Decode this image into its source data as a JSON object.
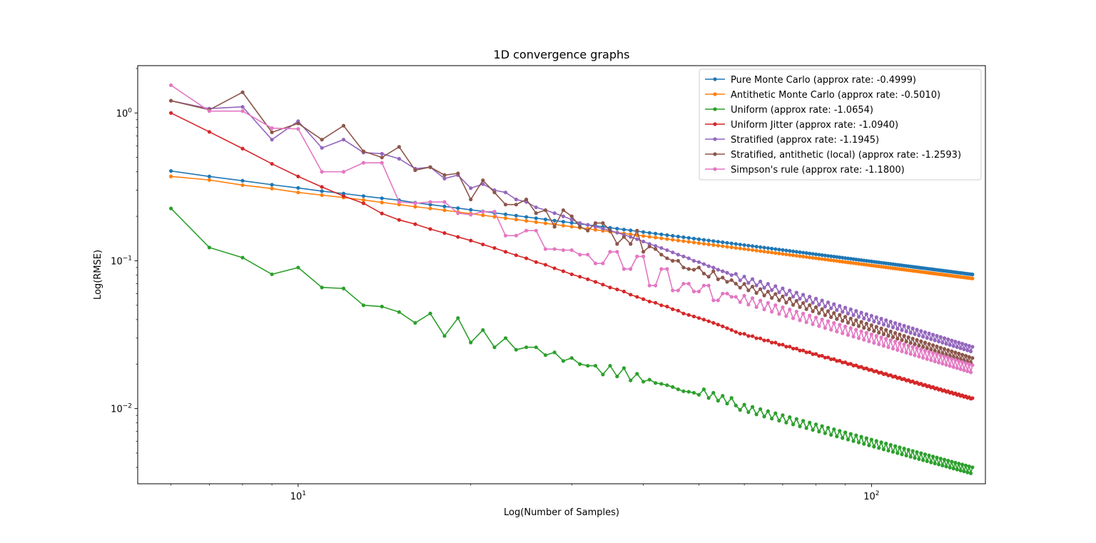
{
  "chart_data": {
    "type": "line",
    "title": "1D convergence graphs",
    "xlabel": "Log(Number of Samples)",
    "ylabel": "Log(RMSE)",
    "xscale": "log",
    "yscale": "log",
    "xlim": [
      5.25,
      158
    ],
    "ylim": [
      0.0031,
      2.09
    ],
    "x_range": [
      6,
      150
    ],
    "grid": false,
    "legend_position": "upper-right",
    "x_ticks": [
      {
        "value": 10,
        "base": "10",
        "exp": "1"
      },
      {
        "value": 100,
        "base": "10",
        "exp": "2"
      }
    ],
    "y_ticks": [
      {
        "value": 1,
        "base": "10",
        "exp": "0"
      },
      {
        "value": 0.1,
        "base": "10",
        "exp": "−1"
      },
      {
        "value": 0.01,
        "base": "10",
        "exp": "−2"
      }
    ],
    "series": [
      {
        "name": "Pure Monte Carlo (approx rate: -0.4999)",
        "color": "#1f77b4",
        "rate": -0.4999,
        "anchor": 0.405,
        "y": [
          0.405,
          0.372,
          0.348,
          0.327,
          0.311,
          0.296,
          0.285,
          0.274,
          0.265,
          0.257,
          0.247,
          0.24
        ]
      },
      {
        "name": "Antithetic Monte Carlo (approx rate: -0.5010)",
        "color": "#ff7f0e",
        "rate": -0.501,
        "anchor": 0.372,
        "y": [
          0.372,
          0.352,
          0.325,
          0.308,
          0.29,
          0.278,
          0.268,
          0.258,
          0.248,
          0.24,
          0.232,
          0.226
        ]
      },
      {
        "name": "Uniform (approx rate: -1.0654)",
        "color": "#2ca02c",
        "rate": -1.0654,
        "anchor": 0.226,
        "y": [
          0.226,
          0.123,
          0.105,
          0.081,
          0.09,
          0.066,
          0.065,
          0.05,
          0.049,
          0.045,
          0.038,
          0.044,
          0.031,
          0.041,
          0.028,
          0.034,
          0.026,
          0.03,
          0.025,
          0.026,
          0.026,
          0.023,
          0.024,
          0.021,
          0.022,
          0.02,
          0.0195,
          0.0195,
          0.017,
          0.0195,
          0.0165,
          0.0188,
          0.0155,
          0.0172,
          0.0152,
          0.0157,
          0.0149,
          0.0147,
          0.0144,
          0.014,
          0.0135,
          0.0131,
          0.013,
          0.0128,
          0.0124,
          0.0135,
          0.0118,
          0.0128,
          0.0113,
          0.0122,
          0.0108,
          0.0118,
          0.0105
        ]
      },
      {
        "name": "Uniform Jitter (approx rate: -1.0940)",
        "color": "#d62728",
        "rate": -1.094,
        "anchor": 1.0,
        "y": [
          1.0,
          0.745,
          0.574,
          0.453,
          0.372,
          0.316,
          0.274,
          0.245,
          0.209,
          0.189,
          0.177,
          0.164,
          0.154,
          0.145,
          0.137,
          0.129,
          0.122,
          0.115,
          0.109,
          0.104,
          0.098,
          0.094,
          0.089,
          0.085,
          0.081,
          0.078,
          0.075,
          0.072,
          0.069,
          0.066,
          0.064,
          0.062,
          0.059,
          0.057,
          0.055,
          0.053,
          0.052,
          0.05,
          0.049,
          0.047,
          0.046,
          0.044,
          0.043,
          0.042,
          0.041,
          0.04,
          0.039,
          0.038,
          0.037,
          0.036,
          0.035,
          0.034,
          0.033
        ]
      },
      {
        "name": "Stratified (approx rate: -1.1945)",
        "color": "#9467bd",
        "rate": -1.1945,
        "anchor": 1.21,
        "y": [
          1.21,
          1.07,
          1.1,
          0.66,
          0.88,
          0.58,
          0.66,
          0.54,
          0.53,
          0.49,
          0.42,
          0.43,
          0.36,
          0.38,
          0.31,
          0.33,
          0.3,
          0.29,
          0.26,
          0.25,
          0.23,
          0.22,
          0.21,
          0.2,
          0.19,
          0.18,
          0.175,
          0.17,
          0.165,
          0.16,
          0.155,
          0.15,
          0.145,
          0.14,
          0.135,
          0.13,
          0.126,
          0.122,
          0.118,
          0.114,
          0.11,
          0.107,
          0.104,
          0.1,
          0.098,
          0.095,
          0.092,
          0.09,
          0.087,
          0.085,
          0.083,
          0.08
        ]
      },
      {
        "name": "Stratified, antithetic (local) (approx rate: -1.2593)",
        "color": "#8c564b",
        "rate": -1.2593,
        "anchor": 1.21,
        "y": [
          1.21,
          1.05,
          1.38,
          0.74,
          0.85,
          0.66,
          0.82,
          0.55,
          0.5,
          0.59,
          0.41,
          0.43,
          0.38,
          0.39,
          0.26,
          0.35,
          0.29,
          0.24,
          0.24,
          0.26,
          0.21,
          0.22,
          0.17,
          0.22,
          0.2,
          0.17,
          0.16,
          0.18,
          0.18,
          0.16,
          0.13,
          0.145,
          0.13,
          0.16,
          0.115,
          0.125,
          0.12,
          0.11,
          0.104,
          0.1,
          0.1,
          0.09,
          0.088,
          0.087,
          0.09,
          0.082,
          0.078,
          0.085,
          0.075,
          0.077,
          0.072,
          0.074,
          0.07
        ]
      },
      {
        "name": "Simpson's rule (approx rate: -1.1800)",
        "color": "#e377c2",
        "rate": -1.18,
        "anchor": 1.54,
        "y": [
          1.54,
          1.03,
          1.03,
          0.79,
          0.78,
          0.4,
          0.4,
          0.46,
          0.46,
          0.25,
          0.245,
          0.25,
          0.25,
          0.21,
          0.205,
          0.215,
          0.215,
          0.148,
          0.148,
          0.16,
          0.16,
          0.12,
          0.12,
          0.118,
          0.118,
          0.11,
          0.11,
          0.096,
          0.096,
          0.115,
          0.115,
          0.088,
          0.088,
          0.107,
          0.107,
          0.068,
          0.068,
          0.088,
          0.088,
          0.063,
          0.063,
          0.07,
          0.07,
          0.062,
          0.062,
          0.068,
          0.068,
          0.054,
          0.054,
          0.06,
          0.06,
          0.057,
          0.057
        ]
      }
    ]
  }
}
